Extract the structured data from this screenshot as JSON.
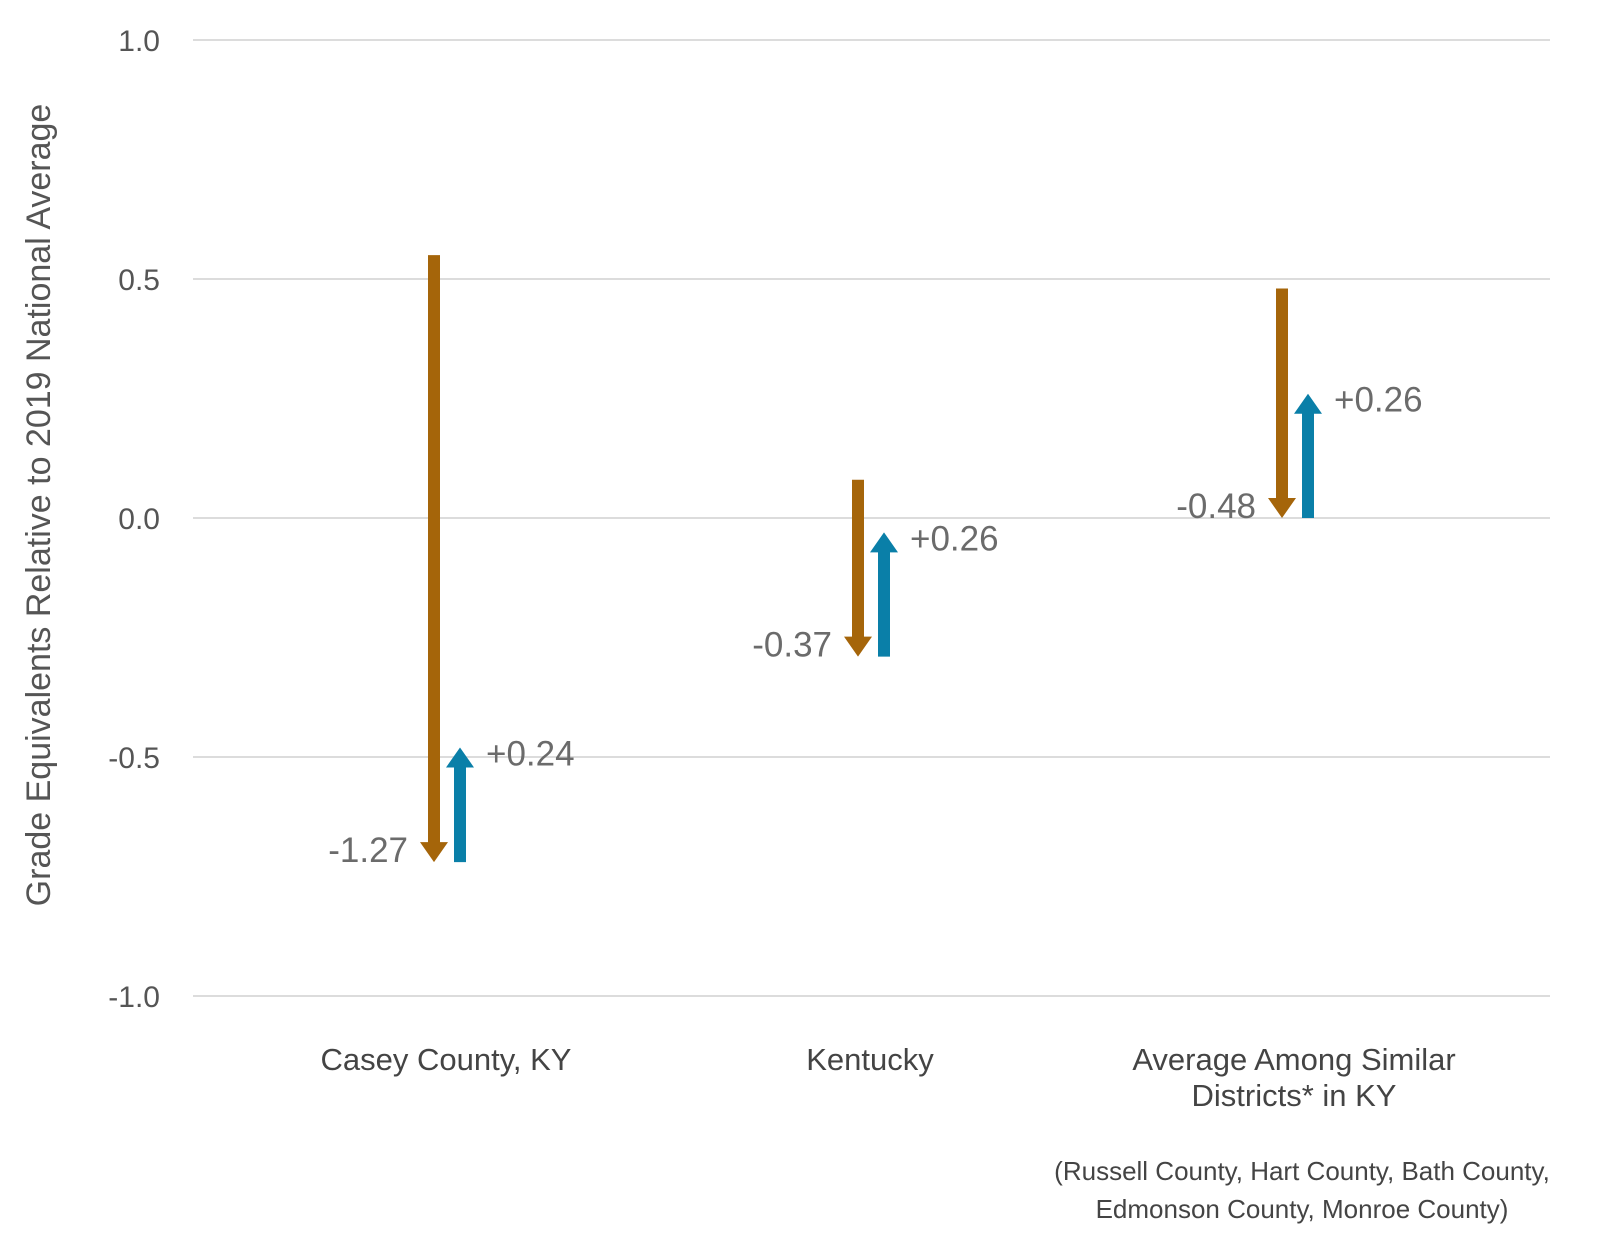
{
  "chart_data": {
    "type": "arrow-change",
    "ylabel": "Grade Equivalents Relative to 2019 National Average",
    "ylim": [
      -1.0,
      1.0
    ],
    "yticks": [
      "1.0",
      "0.5",
      "0.0",
      "-0.5",
      "-1.0"
    ],
    "grid": true,
    "colors": {
      "decline": "#A5650A",
      "recovery": "#0A7FA8"
    },
    "categories": [
      {
        "label_lines": [
          "Casey County, KY"
        ],
        "decline": {
          "from": 0.55,
          "to": -0.72,
          "label": "-1.27"
        },
        "recovery": {
          "from": -0.72,
          "to": -0.48,
          "label": "+0.24"
        }
      },
      {
        "label_lines": [
          "Kentucky"
        ],
        "decline": {
          "from": 0.08,
          "to": -0.29,
          "label": "-0.37"
        },
        "recovery": {
          "from": -0.29,
          "to": -0.03,
          "label": "+0.26"
        }
      },
      {
        "label_lines": [
          "Average Among Similar",
          "Districts* in KY"
        ],
        "decline": {
          "from": 0.48,
          "to": 0.0,
          "label": "-0.48"
        },
        "recovery": {
          "from": 0.0,
          "to": 0.26,
          "label": "+0.26"
        }
      }
    ],
    "footnote_lines": [
      "(Russell County, Hart County, Bath County,",
      "Edmonson County, Monroe County)"
    ]
  }
}
